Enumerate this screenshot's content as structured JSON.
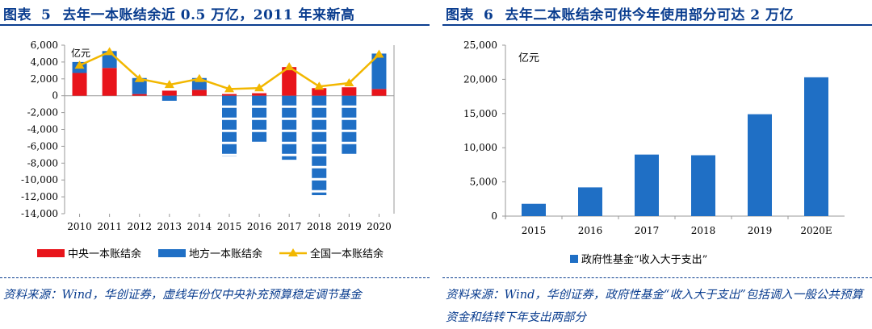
{
  "left_panel": {
    "title_prefix": "图表",
    "title_num": "5",
    "title_text": "去年一本账结余近 0.5 万亿，2011 年来新高",
    "source": "资料来源：Wind，华创证券，虚线年份仅中央补充预算稳定调节基金"
  },
  "right_panel": {
    "title_prefix": "图表",
    "title_num": "6",
    "title_text": "去年二本账结余可供今年使用部分可达 2 万亿",
    "source": "资料来源：Wind，华创证券，政府性基金“收入大于支出”包括调入一般公共预算资金和结转下年支出两部分"
  },
  "colors": {
    "red": "#e8141b",
    "blue": "#1f6fc5",
    "yellow": "#f2b700",
    "axis": "#9a9a9a",
    "title_blue": "#0a3d8f"
  },
  "chart_data": [
    {
      "type": "bar",
      "stacked": true,
      "unit": "亿元",
      "categories": [
        "2010",
        "2011",
        "2012",
        "2013",
        "2014",
        "2015",
        "2016",
        "2017",
        "2018",
        "2019",
        "2020"
      ],
      "ylim": [
        -14000,
        6000
      ],
      "yticks": [
        "6,000",
        "4,000",
        "2,000",
        "0",
        "-2,000",
        "-4,000",
        "-6,000",
        "-8,000",
        "-10,000",
        "-12,000",
        "-14,000"
      ],
      "ytick_values": [
        6000,
        4000,
        2000,
        0,
        -2000,
        -4000,
        -6000,
        -8000,
        -10000,
        -12000,
        -14000
      ],
      "series": [
        {
          "name": "中央一本账结余",
          "kind": "bar",
          "color": "red",
          "values": [
            2700,
            3300,
            200,
            600,
            700,
            200,
            300,
            3400,
            900,
            1000,
            800
          ]
        },
        {
          "name": "地方一本账结余",
          "kind": "bar",
          "color": "blue",
          "values": [
            1300,
            2000,
            1900,
            -600,
            1400,
            -7200,
            -5500,
            -7600,
            -11800,
            -7100,
            4200
          ],
          "dashed_years": [
            "2015",
            "2016",
            "2017",
            "2018",
            "2019"
          ]
        },
        {
          "name": "全国一本账结余",
          "kind": "line",
          "color": "yellow",
          "values": [
            3600,
            5200,
            2000,
            1300,
            2000,
            800,
            900,
            3400,
            1100,
            1500,
            4900
          ]
        }
      ],
      "legend_position": "bottom"
    },
    {
      "type": "bar",
      "unit": "亿元",
      "categories": [
        "2015",
        "2016",
        "2017",
        "2018",
        "2019",
        "2020E"
      ],
      "ylim": [
        0,
        25000
      ],
      "yticks": [
        "25,000",
        "20,000",
        "15,000",
        "10,000",
        "5,000",
        "0"
      ],
      "ytick_values": [
        25000,
        20000,
        15000,
        10000,
        5000,
        0
      ],
      "series": [
        {
          "name": "政府性基金“收入大于支出”",
          "kind": "bar",
          "color": "blue",
          "values": [
            1800,
            4200,
            9000,
            8900,
            14900,
            20300
          ]
        }
      ],
      "legend_position": "bottom"
    }
  ]
}
